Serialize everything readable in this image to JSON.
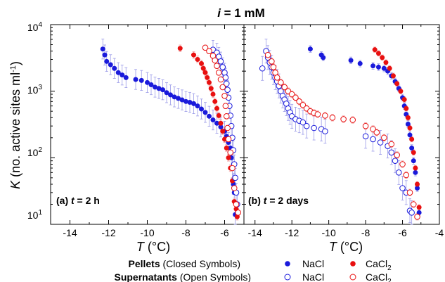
{
  "chart_data": {
    "type": "scatter",
    "title": "i = 1 mM",
    "title_parts": {
      "var": "i",
      "rest": " = 1 mM"
    },
    "ylabel": {
      "var": "K",
      "rest": " (no. active sites ml",
      "sup": "-1",
      "close": ")"
    },
    "xlabel": {
      "var": "T",
      "rest": " (°C)"
    },
    "yscale": "log",
    "ylim": [
      10,
      10000
    ],
    "y_ticks": [
      "10",
      "10",
      "10",
      "10"
    ],
    "y_tick_exps": [
      "1",
      "2",
      "3",
      "4"
    ],
    "panels": [
      {
        "label": {
          "pre": "(a) ",
          "var": "t",
          "rest": " = 2 h"
        },
        "xlim": [
          -15,
          -5
        ],
        "x_ticks": [
          "-14",
          "-12",
          "-10",
          "-8",
          "-6"
        ],
        "series": [
          {
            "key": "pellet_nacl",
            "color": "#1a1adb",
            "filled": true,
            "points": [
              [
                -12.3,
                4300
              ],
              [
                -12.2,
                3500
              ],
              [
                -12.1,
                2800
              ],
              [
                -11.9,
                2500
              ],
              [
                -11.7,
                2200
              ],
              [
                -11.5,
                1900
              ],
              [
                -11.3,
                1750
              ],
              [
                -11.1,
                1600
              ],
              [
                -10.6,
                1500
              ],
              [
                -10.3,
                1450
              ],
              [
                -10.0,
                1350
              ],
              [
                -9.8,
                1250
              ],
              [
                -9.6,
                1150
              ],
              [
                -9.4,
                1100
              ],
              [
                -9.2,
                1050
              ],
              [
                -9.0,
                950
              ],
              [
                -8.8,
                880
              ],
              [
                -8.6,
                820
              ],
              [
                -8.4,
                780
              ],
              [
                -8.2,
                740
              ],
              [
                -8.0,
                700
              ],
              [
                -7.8,
                680
              ],
              [
                -7.6,
                650
              ],
              [
                -7.4,
                600
              ],
              [
                -7.2,
                540
              ],
              [
                -7.0,
                480
              ],
              [
                -6.8,
                420
              ],
              [
                -6.6,
                370
              ],
              [
                -6.4,
                330
              ],
              [
                -6.2,
                290
              ],
              [
                -6.0,
                250
              ],
              [
                -5.9,
                210
              ],
              [
                -5.8,
                170
              ],
              [
                -5.7,
                140
              ],
              [
                -5.65,
                100
              ],
              [
                -5.6,
                70
              ],
              [
                -5.55,
                40
              ],
              [
                -5.5,
                30
              ],
              [
                -5.45,
                14
              ]
            ],
            "err": 0.15
          },
          {
            "key": "pellet_cacl2",
            "color": "#e81010",
            "filled": true,
            "points": [
              [
                -8.3,
                4400
              ],
              [
                -7.6,
                3500
              ],
              [
                -7.4,
                3000
              ],
              [
                -7.2,
                2600
              ],
              [
                -7.1,
                2200
              ],
              [
                -7.0,
                1900
              ],
              [
                -6.9,
                1600
              ],
              [
                -6.8,
                1350
              ],
              [
                -6.7,
                1100
              ],
              [
                -6.6,
                900
              ],
              [
                -6.5,
                700
              ],
              [
                -6.4,
                550
              ],
              [
                -6.3,
                430
              ],
              [
                -6.2,
                330
              ],
              [
                -6.1,
                250
              ],
              [
                -6.0,
                190
              ],
              [
                -5.9,
                140
              ],
              [
                -5.8,
                100
              ],
              [
                -5.7,
                70
              ],
              [
                -5.6,
                45
              ],
              [
                -5.5,
                22
              ],
              [
                -5.4,
                17
              ],
              [
                -5.35,
                13
              ]
            ],
            "err": 0.05
          },
          {
            "key": "super_nacl",
            "color": "#1a1adb",
            "filled": false,
            "points": [
              [
                -6.6,
                4200
              ],
              [
                -6.4,
                3800
              ],
              [
                -6.3,
                3300
              ],
              [
                -6.2,
                2800
              ],
              [
                -6.1,
                2300
              ],
              [
                -6.0,
                1900
              ],
              [
                -5.95,
                1600
              ],
              [
                -5.9,
                1300
              ],
              [
                -5.85,
                1050
              ],
              [
                -5.8,
                800
              ],
              [
                -5.75,
                600
              ],
              [
                -5.7,
                430
              ],
              [
                -5.65,
                300
              ],
              [
                -5.6,
                200
              ],
              [
                -5.55,
                130
              ],
              [
                -5.5,
                80
              ],
              [
                -5.45,
                50
              ],
              [
                -5.4,
                30
              ],
              [
                -5.35,
                20
              ]
            ],
            "err": 0.14
          },
          {
            "key": "super_cacl2",
            "color": "#e81010",
            "filled": false,
            "points": [
              [
                -7.0,
                4500
              ],
              [
                -6.8,
                4000
              ],
              [
                -6.6,
                3400
              ],
              [
                -6.5,
                2900
              ],
              [
                -6.4,
                2400
              ],
              [
                -6.3,
                1900
              ],
              [
                -6.2,
                1500
              ],
              [
                -6.1,
                1150
              ],
              [
                -6.0,
                850
              ],
              [
                -5.95,
                600
              ],
              [
                -5.9,
                420
              ],
              [
                -5.85,
                280
              ],
              [
                -5.8,
                190
              ],
              [
                -5.7,
                120
              ],
              [
                -5.6,
                70
              ],
              [
                -5.5,
                35
              ],
              [
                -5.4,
                20
              ],
              [
                -5.3,
                15
              ]
            ],
            "err": 0.04
          }
        ]
      },
      {
        "label": {
          "pre": "(b) ",
          "var": "t",
          "rest": " = 2 days"
        },
        "xlim": [
          -14.6,
          -4
        ],
        "x_ticks": [
          "-14",
          "-12",
          "-10",
          "-8",
          "-6",
          "-4"
        ],
        "series": [
          {
            "key": "pellet_nacl",
            "color": "#1a1adb",
            "filled": true,
            "points": [
              [
                -11.0,
                4300
              ],
              [
                -10.4,
                3500
              ],
              [
                -10.3,
                3200
              ],
              [
                -8.8,
                2900
              ],
              [
                -8.3,
                2600
              ],
              [
                -7.6,
                2400
              ],
              [
                -7.3,
                2300
              ],
              [
                -7.0,
                2200
              ],
              [
                -6.8,
                2000
              ],
              [
                -6.6,
                1700
              ],
              [
                -6.4,
                1400
              ],
              [
                -6.2,
                1100
              ],
              [
                -6.0,
                800
              ],
              [
                -5.9,
                600
              ],
              [
                -5.8,
                450
              ],
              [
                -5.7,
                320
              ],
              [
                -5.6,
                220
              ],
              [
                -5.5,
                140
              ],
              [
                -5.4,
                90
              ],
              [
                -5.3,
                60
              ],
              [
                -5.2,
                35
              ],
              [
                -5.1,
                15
              ]
            ],
            "err": 0.05
          },
          {
            "key": "pellet_cacl2",
            "color": "#e81010",
            "filled": true,
            "points": [
              [
                -7.5,
                4200
              ],
              [
                -7.3,
                3700
              ],
              [
                -7.1,
                3200
              ],
              [
                -6.9,
                2700
              ],
              [
                -6.7,
                2200
              ],
              [
                -6.5,
                1700
              ],
              [
                -6.3,
                1300
              ],
              [
                -6.1,
                1000
              ],
              [
                -5.9,
                750
              ],
              [
                -5.8,
                550
              ],
              [
                -5.7,
                400
              ],
              [
                -5.6,
                280
              ],
              [
                -5.5,
                190
              ],
              [
                -5.4,
                120
              ],
              [
                -5.3,
                70
              ],
              [
                -5.2,
                40
              ],
              [
                -5.1,
                18
              ]
            ],
            "err": 0.04
          },
          {
            "key": "super_nacl",
            "color": "#1a1adb",
            "filled": false,
            "points": [
              [
                -13.6,
                2200
              ],
              [
                -13.4,
                4000
              ],
              [
                -13.3,
                3200
              ],
              [
                -13.2,
                2700
              ],
              [
                -13.1,
                2300
              ],
              [
                -13.0,
                1900
              ],
              [
                -12.9,
                1600
              ],
              [
                -12.8,
                1400
              ],
              [
                -12.7,
                1200
              ],
              [
                -12.6,
                1000
              ],
              [
                -12.5,
                850
              ],
              [
                -12.4,
                750
              ],
              [
                -12.3,
                650
              ],
              [
                -12.2,
                550
              ],
              [
                -12.1,
                480
              ],
              [
                -12.0,
                420
              ],
              [
                -11.8,
                380
              ],
              [
                -11.6,
                360
              ],
              [
                -11.4,
                340
              ],
              [
                -11.2,
                300
              ],
              [
                -10.8,
                280
              ],
              [
                -10.4,
                270
              ],
              [
                -10.2,
                250
              ],
              [
                -8.0,
                210
              ],
              [
                -7.6,
                190
              ],
              [
                -7.2,
                170
              ],
              [
                -6.8,
                150
              ],
              [
                -6.6,
                120
              ],
              [
                -6.4,
                90
              ],
              [
                -6.2,
                60
              ],
              [
                -6.0,
                35
              ],
              [
                -5.8,
                30
              ],
              [
                -5.6,
                16
              ],
              [
                -5.5,
                15
              ]
            ],
            "err": 0.18
          },
          {
            "key": "super_cacl2",
            "color": "#e81010",
            "filled": false,
            "points": [
              [
                -13.3,
                3500
              ],
              [
                -13.1,
                2800
              ],
              [
                -13.0,
                2300
              ],
              [
                -12.9,
                1900
              ],
              [
                -12.8,
                1600
              ],
              [
                -12.6,
                1350
              ],
              [
                -12.4,
                1150
              ],
              [
                -12.2,
                1000
              ],
              [
                -12.0,
                900
              ],
              [
                -11.8,
                800
              ],
              [
                -11.6,
                700
              ],
              [
                -11.4,
                620
              ],
              [
                -11.2,
                550
              ],
              [
                -11.0,
                500
              ],
              [
                -10.8,
                470
              ],
              [
                -10.6,
                450
              ],
              [
                -10.2,
                430
              ],
              [
                -9.8,
                400
              ],
              [
                -9.2,
                380
              ],
              [
                -8.7,
                370
              ],
              [
                -8.0,
                300
              ],
              [
                -7.6,
                270
              ],
              [
                -7.4,
                240
              ],
              [
                -7.0,
                200
              ],
              [
                -6.6,
                160
              ],
              [
                -6.3,
                110
              ],
              [
                -6.0,
                80
              ],
              [
                -5.8,
                55
              ],
              [
                -5.6,
                30
              ],
              [
                -5.4,
                20
              ],
              [
                -5.2,
                13
              ]
            ],
            "err": 0.05
          }
        ]
      }
    ]
  },
  "legend": {
    "pellets_bold": "Pellets",
    "pellets_rest": " (Closed Symbols)",
    "supernatants_bold": "Supernatants",
    "supernatants_rest": " (Open Symbols)",
    "nacl": "NaCl",
    "cacl2_base": "CaCl",
    "cacl2_sub": "2"
  },
  "colors": {
    "nacl": "#1a1adb",
    "cacl2": "#e81010",
    "errorbar": "#9a9ae8"
  }
}
